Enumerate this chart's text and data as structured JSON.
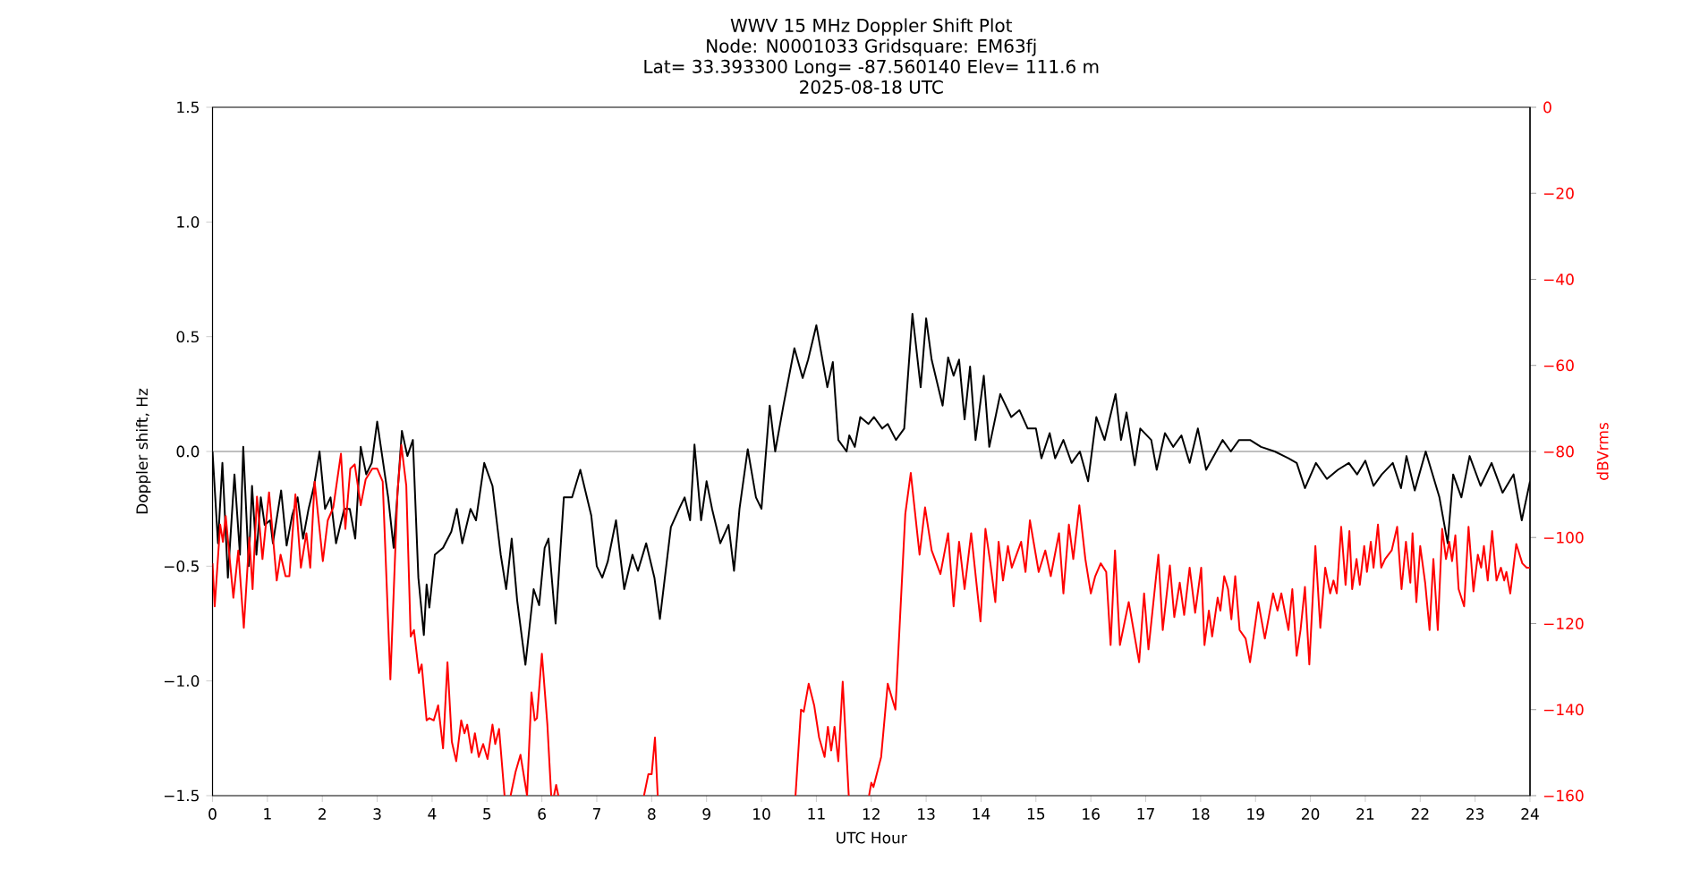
{
  "chart_data": {
    "type": "line",
    "title": "WWV 15 MHz Doppler Shift Plot",
    "subtitle": "Node: N0001033 Gridsquare: EM63fj",
    "annotations": [
      "Lat= 33.393300 Long= -87.560140 Elev= 111.6 m",
      "2025-08-18 UTC"
    ],
    "xlabel": "UTC Hour",
    "ylabel": "Doppler shift, Hz",
    "y2label": "dBVrms",
    "xlim": [
      0,
      24
    ],
    "xticks": [
      0,
      1,
      2,
      3,
      4,
      5,
      6,
      7,
      8,
      9,
      10,
      11,
      12,
      13,
      14,
      15,
      16,
      17,
      18,
      19,
      20,
      21,
      22,
      23,
      24
    ],
    "ylim": [
      -1.5,
      1.5
    ],
    "yticks": [
      {
        "value": -1.5,
        "label": "−1.5"
      },
      {
        "value": -1,
        "label": "−1.0"
      },
      {
        "value": -0.5,
        "label": "−0.5"
      },
      {
        "value": 0,
        "label": "0.0"
      },
      {
        "value": 0.5,
        "label": "0.5"
      },
      {
        "value": 1,
        "label": "1.0"
      },
      {
        "value": 1.5,
        "label": "1.5"
      }
    ],
    "y2lim": [
      -160,
      0
    ],
    "y2ticks": [
      {
        "value": -160,
        "label": "−160"
      },
      {
        "value": -140,
        "label": "−140"
      },
      {
        "value": -120,
        "label": "−120"
      },
      {
        "value": -100,
        "label": "−100"
      },
      {
        "value": -80,
        "label": "−80"
      },
      {
        "value": -60,
        "label": "−60"
      },
      {
        "value": -40,
        "label": "−40"
      },
      {
        "value": -20,
        "label": "−20"
      },
      {
        "value": 0,
        "label": "0"
      }
    ],
    "ref_lines": [
      {
        "axis": "y",
        "value": 0,
        "color": "#808080"
      }
    ],
    "line_style": "solid",
    "series": [
      {
        "color": "#000000",
        "x": [
          0,
          0.1,
          0.18,
          0.28,
          0.4,
          0.5,
          0.56,
          0.66,
          0.72,
          0.8,
          0.88,
          0.95,
          1.05,
          1.1,
          1.25,
          1.35,
          1.45,
          1.55,
          1.65,
          1.75,
          1.85,
          1.95,
          2.05,
          2.15,
          2.25,
          2.4,
          2.5,
          2.6,
          2.7,
          2.8,
          2.9,
          3.0,
          3.2,
          3.3,
          3.45,
          3.55,
          3.65,
          3.75,
          3.85,
          3.9,
          3.95,
          4.05,
          4.2,
          4.35,
          4.45,
          4.55,
          4.7,
          4.8,
          4.95,
          5.1,
          5.25,
          5.35,
          5.45,
          5.55,
          5.7,
          5.85,
          5.95,
          6.05,
          6.12,
          6.25,
          6.4,
          6.55,
          6.7,
          6.9,
          7.0,
          7.1,
          7.2,
          7.35,
          7.5,
          7.65,
          7.75,
          7.9,
          8.05,
          8.15,
          8.35,
          8.5,
          8.6,
          8.7,
          8.78,
          8.9,
          9.0,
          9.1,
          9.25,
          9.4,
          9.5,
          9.6,
          9.75,
          9.9,
          10.0,
          10.15,
          10.25,
          10.4,
          10.6,
          10.75,
          10.85,
          11.0,
          11.2,
          11.3,
          11.4,
          11.55,
          11.6,
          11.7,
          11.8,
          11.95,
          12.05,
          12.2,
          12.3,
          12.45,
          12.6,
          12.75,
          12.9,
          13.0,
          13.1,
          13.3,
          13.4,
          13.5,
          13.6,
          13.7,
          13.8,
          13.9,
          14.05,
          14.15,
          14.35,
          14.55,
          14.7,
          14.85,
          15.0,
          15.1,
          15.25,
          15.35,
          15.5,
          15.65,
          15.8,
          15.95,
          16.1,
          16.25,
          16.45,
          16.55,
          16.65,
          16.8,
          16.9,
          17.1,
          17.2,
          17.35,
          17.5,
          17.65,
          17.8,
          17.95,
          18.1,
          18.4,
          18.55,
          18.7,
          18.9,
          19.1,
          19.35,
          19.6,
          19.75,
          19.9,
          20.1,
          20.3,
          20.5,
          20.7,
          20.85,
          21.0,
          21.15,
          21.3,
          21.5,
          21.65,
          21.75,
          21.9,
          22.1,
          22.2,
          22.35,
          22.5,
          22.6,
          22.75,
          22.9,
          23.1,
          23.3,
          23.5,
          23.7,
          23.85,
          24.0
        ],
        "values": [
          0,
          -0.4,
          -0.05,
          -0.55,
          -0.1,
          -0.45,
          0.02,
          -0.5,
          -0.15,
          -0.45,
          -0.2,
          -0.32,
          -0.3,
          -0.4,
          -0.17,
          -0.41,
          -0.28,
          -0.2,
          -0.38,
          -0.25,
          -0.15,
          0.0,
          -0.25,
          -0.2,
          -0.4,
          -0.25,
          -0.25,
          -0.38,
          0.02,
          -0.1,
          -0.05,
          0.13,
          -0.2,
          -0.42,
          0.09,
          -0.02,
          0.05,
          -0.55,
          -0.8,
          -0.58,
          -0.68,
          -0.45,
          -0.42,
          -0.35,
          -0.25,
          -0.4,
          -0.25,
          -0.3,
          -0.05,
          -0.15,
          -0.45,
          -0.6,
          -0.38,
          -0.65,
          -0.93,
          -0.6,
          -0.67,
          -0.42,
          -0.38,
          -0.75,
          -0.2,
          -0.2,
          -0.08,
          -0.28,
          -0.5,
          -0.55,
          -0.48,
          -0.3,
          -0.6,
          -0.45,
          -0.52,
          -0.4,
          -0.55,
          -0.73,
          -0.33,
          -0.25,
          -0.2,
          -0.3,
          0.03,
          -0.3,
          -0.13,
          -0.25,
          -0.4,
          -0.32,
          -0.52,
          -0.25,
          0.01,
          -0.2,
          -0.25,
          0.2,
          0.0,
          0.2,
          0.45,
          0.32,
          0.4,
          0.55,
          0.28,
          0.39,
          0.05,
          0.0,
          0.07,
          0.02,
          0.15,
          0.12,
          0.15,
          0.1,
          0.12,
          0.05,
          0.1,
          0.6,
          0.28,
          0.58,
          0.4,
          0.2,
          0.41,
          0.33,
          0.4,
          0.14,
          0.37,
          0.05,
          0.33,
          0.02,
          0.25,
          0.15,
          0.18,
          0.1,
          0.1,
          -0.03,
          0.08,
          -0.03,
          0.05,
          -0.05,
          0.0,
          -0.13,
          0.15,
          0.05,
          0.25,
          0.05,
          0.17,
          -0.06,
          0.1,
          0.05,
          -0.08,
          0.08,
          0.02,
          0.07,
          -0.05,
          0.1,
          -0.08,
          0.05,
          0.0,
          0.05,
          0.05,
          0.02,
          0.0,
          -0.03,
          -0.05,
          -0.16,
          -0.05,
          -0.12,
          -0.08,
          -0.05,
          -0.1,
          -0.04,
          -0.15,
          -0.1,
          -0.05,
          -0.16,
          -0.02,
          -0.17,
          0.0,
          -0.08,
          -0.2,
          -0.4,
          -0.1,
          -0.2,
          -0.02,
          -0.15,
          -0.05,
          -0.18,
          -0.1,
          -0.3,
          -0.13
        ]
      },
      {
        "color": "#ff0000",
        "axis": "y2",
        "x": [
          0.0,
          0.04,
          0.14,
          0.19,
          0.24,
          0.38,
          0.47,
          0.57,
          0.67,
          0.73,
          0.81,
          0.91,
          1.03,
          1.17,
          1.24,
          1.33,
          1.4,
          1.51,
          1.61,
          1.71,
          1.78,
          1.86,
          2.01,
          2.1,
          2.2,
          2.34,
          2.42,
          2.51,
          2.59,
          2.7,
          2.79,
          2.91,
          3.0,
          3.1,
          3.24,
          3.37,
          3.44,
          3.53,
          3.61,
          3.67,
          3.76,
          3.81,
          3.9,
          3.95,
          4.03,
          4.11,
          4.2,
          4.28,
          4.36,
          4.44,
          4.53,
          4.59,
          4.64,
          4.72,
          4.78,
          4.85,
          4.93,
          5.01,
          5.1,
          5.15,
          5.22,
          5.32,
          5.38,
          5.43,
          5.52,
          5.61,
          5.73,
          5.81,
          5.87,
          5.91,
          6.0,
          6.1,
          6.17,
          6.2,
          6.22,
          6.26,
          6.3,
          7.0,
          7.86,
          7.94,
          8.0,
          8.06,
          8.11,
          9.0,
          10.62,
          10.72,
          10.77,
          10.86,
          10.96,
          11.05,
          11.15,
          11.21,
          11.27,
          11.33,
          11.4,
          11.48,
          11.59,
          11.8,
          11.96,
          12.0,
          12.04,
          12.18,
          12.3,
          12.44,
          12.62,
          12.72,
          12.88,
          12.98,
          13.1,
          13.26,
          13.4,
          13.5,
          13.6,
          13.7,
          13.82,
          13.99,
          14.08,
          14.17,
          14.26,
          14.32,
          14.4,
          14.49,
          14.56,
          14.73,
          14.81,
          14.89,
          15.05,
          15.17,
          15.27,
          15.42,
          15.5,
          15.6,
          15.68,
          15.79,
          15.9,
          16.0,
          16.08,
          16.18,
          16.28,
          16.36,
          16.44,
          16.53,
          16.69,
          16.88,
          16.97,
          17.05,
          17.23,
          17.31,
          17.44,
          17.52,
          17.62,
          17.7,
          17.8,
          17.9,
          18.01,
          18.07,
          18.15,
          18.21,
          18.31,
          18.36,
          18.43,
          18.5,
          18.56,
          18.63,
          18.71,
          18.82,
          18.9,
          19.05,
          19.17,
          19.32,
          19.4,
          19.47,
          19.6,
          19.67,
          19.75,
          19.82,
          19.9,
          19.98,
          20.09,
          20.18,
          20.27,
          20.36,
          20.42,
          20.48,
          20.56,
          20.64,
          20.71,
          20.76,
          20.84,
          20.9,
          20.98,
          21.03,
          21.1,
          21.15,
          21.23,
          21.29,
          21.36,
          21.48,
          21.58,
          21.66,
          21.74,
          21.82,
          21.86,
          21.93,
          22.0,
          22.09,
          22.17,
          22.24,
          22.32,
          22.4,
          22.47,
          22.53,
          22.58,
          22.64,
          22.7,
          22.8,
          22.88,
          22.97,
          23.05,
          23.11,
          23.16,
          23.23,
          23.31,
          23.39,
          23.47,
          23.53,
          23.57,
          23.64,
          23.75,
          23.86,
          23.94,
          24.0
        ],
        "values": [
          -106,
          -116,
          -97,
          -101,
          -95,
          -114,
          -103,
          -121,
          -100,
          -112,
          -90.5,
          -105,
          -89.5,
          -110,
          -104,
          -109,
          -109,
          -90,
          -107,
          -99,
          -107,
          -87,
          -105.5,
          -96,
          -93,
          -80.5,
          -98,
          -84,
          -83,
          -92.5,
          -86.5,
          -84,
          -84,
          -87,
          -133,
          -89.5,
          -78.5,
          -88,
          -123,
          -121.5,
          -131.5,
          -129.5,
          -142.5,
          -142,
          -142.5,
          -139,
          -149,
          -129,
          -147.5,
          -152,
          -142.5,
          -145.5,
          -143.5,
          -150,
          -145.5,
          -151,
          -148,
          -151.5,
          -143.5,
          -148,
          -144.5,
          -160,
          null,
          -160,
          -154.5,
          -150.5,
          -160,
          -136,
          -142.5,
          -142,
          -127,
          -143.5,
          -160,
          null,
          -160,
          -157.5,
          -160,
          null,
          -160,
          -155,
          -155,
          -146.5,
          -160,
          null,
          -160,
          -140,
          -140.5,
          -134,
          -139,
          -146.5,
          -151,
          -144,
          -149.5,
          -144,
          -152,
          -133.5,
          -160,
          null,
          -160,
          -157,
          -158,
          -151,
          -134,
          -140,
          -94.5,
          -85,
          -104,
          -93,
          -103,
          -108.5,
          -99,
          -116,
          -101,
          -112,
          -99,
          -119.5,
          -98,
          -106,
          -115,
          -101,
          -110,
          -102,
          -107,
          -101,
          -108,
          -96,
          -108,
          -103,
          -109,
          -99,
          -113,
          -97,
          -105,
          -92.5,
          -105,
          -113,
          -109,
          -106,
          -108,
          -125,
          -103,
          -125,
          -115,
          -129,
          -113,
          -126,
          -104,
          -121.5,
          -106.5,
          -118.5,
          -110.5,
          -118,
          -107,
          -117.5,
          -107,
          -125,
          -117,
          -123,
          -114,
          -117,
          -109,
          -112,
          -119,
          -109,
          -121.5,
          -123.5,
          -129,
          -115,
          -123.5,
          -113,
          -117,
          -113,
          -121.5,
          -112,
          -127.5,
          -121.5,
          -111.5,
          -129.5,
          -102,
          -121,
          -107,
          -113,
          -110,
          -113,
          -97.5,
          -111,
          -98.5,
          -112,
          -105,
          -111,
          -102,
          -108,
          -101,
          -107,
          -97,
          -107,
          -105,
          -103,
          -97.5,
          -112,
          -101,
          -110.5,
          -99,
          -115,
          -102,
          -110.5,
          -121.5,
          -105,
          -121.5,
          -98,
          -105,
          -101,
          -105.5,
          -99.5,
          -112,
          -116,
          -97.5,
          -112.5,
          -104,
          -107,
          -102,
          -110,
          -98.5,
          -110,
          -107,
          -110,
          -108,
          -113,
          -101.5,
          -106,
          -107,
          -107
        ]
      }
    ]
  }
}
